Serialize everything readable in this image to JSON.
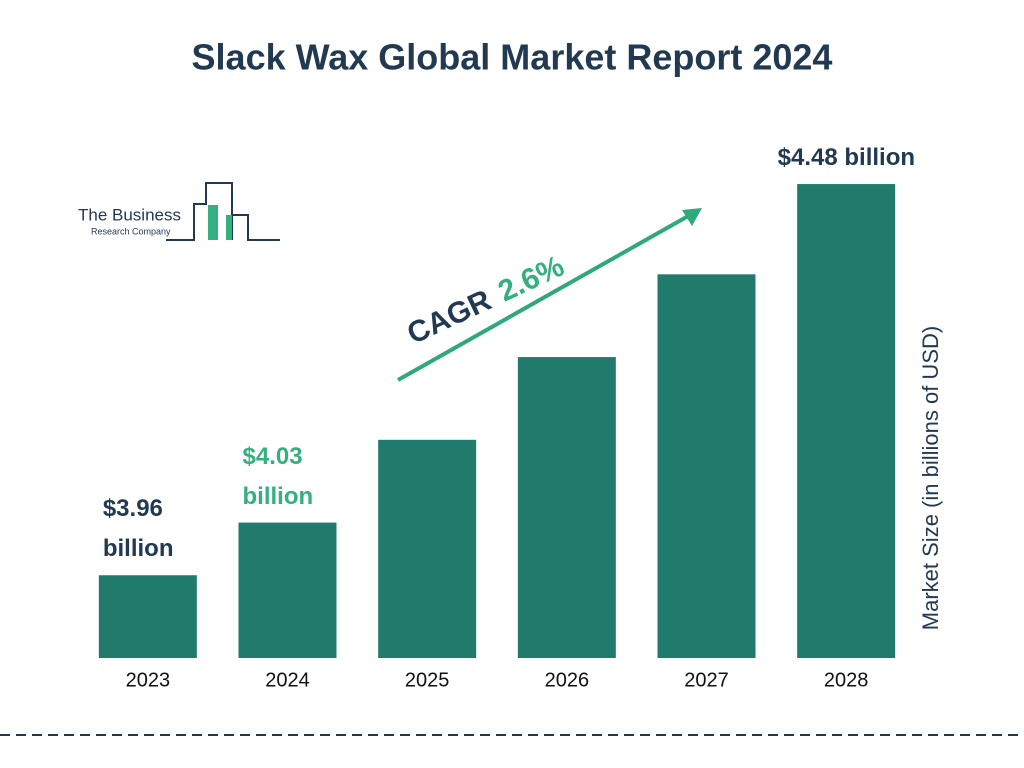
{
  "chart_data": {
    "type": "bar",
    "title": "Slack Wax Global Market Report 2024",
    "y_axis_label": "Market Size (in billions of USD)",
    "categories": [
      "2023",
      "2024",
      "2025",
      "2026",
      "2027",
      "2028"
    ],
    "values": [
      3.96,
      4.03,
      4.14,
      4.25,
      4.36,
      4.48
    ],
    "value_labels": [
      "$3.96 billion",
      "$4.03 billion",
      null,
      null,
      null,
      "$4.48 billion"
    ],
    "value_label_colors": [
      "#213a52",
      "#33b07f",
      null,
      null,
      null,
      "#213a52"
    ],
    "color": "#217b6c",
    "ylim": [
      3.85,
      4.5
    ],
    "grid": false,
    "annotation": {
      "label": "CAGR",
      "value": "2.6%",
      "label_color": "#213a52",
      "value_color": "#33b07f"
    },
    "logo": {
      "line1": "The Business",
      "line2": "Research Company"
    }
  }
}
